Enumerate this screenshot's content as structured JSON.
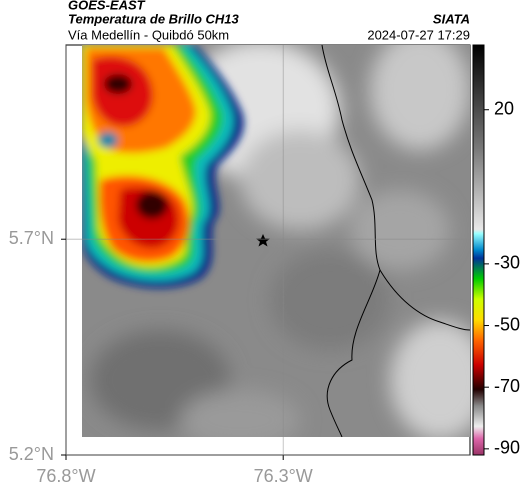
{
  "header": {
    "source": "GOES-EAST",
    "title": "Temperatura de Brillo CH13",
    "subtitle": "Vía Medellín - Quibdó 50km",
    "brand": "SIATA",
    "timestamp": "2024-07-27 17:29"
  },
  "map": {
    "xlim": [
      -76.8,
      -75.87
    ],
    "ylim": [
      5.2,
      6.15
    ],
    "xticks": [
      {
        "value": -76.8,
        "label": "76.8°W"
      },
      {
        "value": -76.3,
        "label": "76.3°W"
      }
    ],
    "yticks": [
      {
        "value": 5.7,
        "label": "5.7°N"
      },
      {
        "value": 5.2,
        "label": "5.2°N"
      }
    ]
  },
  "colorbar": {
    "lim": [
      -92,
      41
    ],
    "ticks": [
      20,
      -30,
      -50,
      -70,
      -90
    ]
  }
}
